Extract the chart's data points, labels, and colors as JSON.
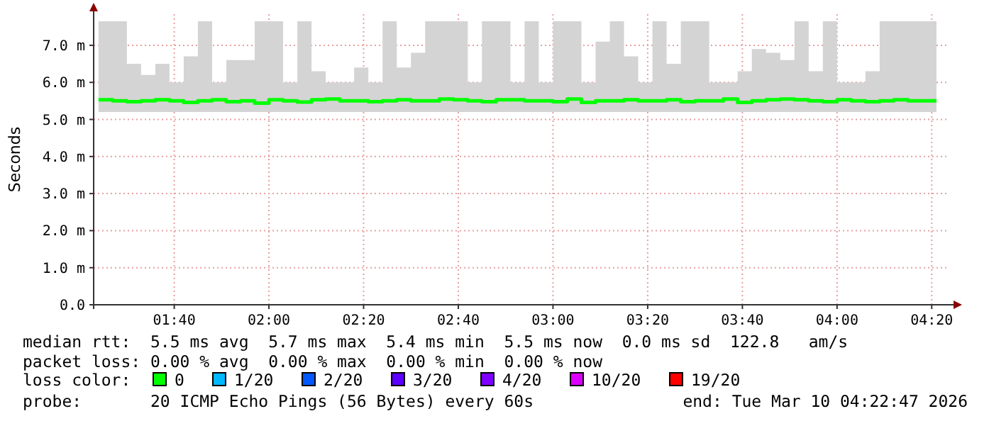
{
  "chart_data": {
    "type": "step",
    "ylabel": "Seconds",
    "x": [
      1.4,
      1.45,
      1.5,
      1.55,
      1.6,
      1.65,
      1.7,
      1.75,
      1.8,
      1.85,
      1.9,
      1.95,
      2.0,
      2.05,
      2.1,
      2.15,
      2.2,
      2.25,
      2.3,
      2.35,
      2.4,
      2.45,
      2.5,
      2.55,
      2.6,
      2.65,
      2.7,
      2.75,
      2.8,
      2.85,
      2.9,
      2.95,
      3.0,
      3.05,
      3.1,
      3.15,
      3.2,
      3.25,
      3.3,
      3.35,
      3.4,
      3.45,
      3.5,
      3.55,
      3.6,
      3.65,
      3.7,
      3.75,
      3.8,
      3.85,
      3.9,
      3.95,
      4.0,
      4.05,
      4.1,
      4.15,
      4.2,
      4.25,
      4.3,
      4.35
    ],
    "xlim": [
      1.383,
      4.39
    ],
    "xticks": [
      {
        "value": 1.6667,
        "label": "01:40"
      },
      {
        "value": 2.0,
        "label": "02:00"
      },
      {
        "value": 2.3333,
        "label": "02:20"
      },
      {
        "value": 2.6667,
        "label": "02:40"
      },
      {
        "value": 3.0,
        "label": "03:00"
      },
      {
        "value": 3.3333,
        "label": "03:20"
      },
      {
        "value": 3.6667,
        "label": "03:40"
      },
      {
        "value": 4.0,
        "label": "04:00"
      },
      {
        "value": 4.3333,
        "label": "04:20"
      }
    ],
    "ylim": [
      0,
      7.84
    ],
    "yticks": [
      {
        "value": 0,
        "label": "0.0"
      },
      {
        "value": 1,
        "label": "1.0 m"
      },
      {
        "value": 2,
        "label": "2.0 m"
      },
      {
        "value": 3,
        "label": "3.0 m"
      },
      {
        "value": 4,
        "label": "4.0 m"
      },
      {
        "value": 5,
        "label": "5.0 m"
      },
      {
        "value": 6,
        "label": "6.0 m"
      },
      {
        "value": 7,
        "label": "7.0 m"
      }
    ],
    "grid": true,
    "legend": "bottom",
    "legend_title": "loss color:",
    "series": [
      {
        "name": "0",
        "color": "#00ff00",
        "values": [
          5.53,
          5.5,
          5.48,
          5.5,
          5.53,
          5.5,
          5.46,
          5.5,
          5.53,
          5.48,
          5.5,
          5.44,
          5.53,
          5.5,
          5.47,
          5.53,
          5.55,
          5.5,
          5.5,
          5.48,
          5.5,
          5.53,
          5.5,
          5.5,
          5.55,
          5.53,
          5.5,
          5.48,
          5.53,
          5.53,
          5.5,
          5.5,
          5.48,
          5.55,
          5.46,
          5.5,
          5.5,
          5.53,
          5.5,
          5.5,
          5.53,
          5.48,
          5.5,
          5.5,
          5.55,
          5.46,
          5.5,
          5.53,
          5.55,
          5.53,
          5.5,
          5.48,
          5.53,
          5.5,
          5.48,
          5.5,
          5.53,
          5.5,
          5.5,
          5.5
        ],
        "lower": [
          5.2,
          5.2,
          5.2,
          5.2,
          5.2,
          5.2,
          5.2,
          5.2,
          5.2,
          5.2,
          5.2,
          5.2,
          5.2,
          5.2,
          5.2,
          5.2,
          5.2,
          5.2,
          5.2,
          5.2,
          5.2,
          5.2,
          5.2,
          5.2,
          5.2,
          5.2,
          5.2,
          5.2,
          5.2,
          5.2,
          5.2,
          5.2,
          5.2,
          5.2,
          5.2,
          5.2,
          5.2,
          5.2,
          5.2,
          5.2,
          5.2,
          5.2,
          5.2,
          5.2,
          5.2,
          5.2,
          5.2,
          5.2,
          5.2,
          5.2,
          5.2,
          5.2,
          5.2,
          5.2,
          5.2,
          5.2,
          5.2,
          5.2,
          5.2,
          5.2
        ],
        "upper": [
          7.65,
          7.65,
          6.5,
          6.2,
          6.5,
          6.0,
          6.7,
          7.65,
          6.0,
          6.6,
          6.6,
          7.65,
          7.65,
          6.0,
          7.65,
          6.3,
          6.0,
          6.0,
          6.4,
          6.0,
          7.65,
          6.4,
          6.8,
          7.65,
          7.65,
          7.65,
          6.0,
          7.65,
          7.65,
          6.0,
          7.65,
          6.0,
          7.65,
          7.65,
          6.0,
          7.1,
          7.65,
          6.7,
          6.0,
          7.65,
          6.5,
          7.65,
          7.65,
          6.0,
          6.0,
          6.3,
          6.9,
          6.8,
          6.6,
          7.65,
          6.3,
          7.65,
          6.0,
          6.0,
          6.3,
          7.65,
          7.65,
          7.65,
          7.65,
          6.0
        ]
      },
      {
        "name": "1/20",
        "color": "#00b8ff",
        "values": [
          null,
          null,
          null,
          null,
          null,
          null,
          null,
          null,
          null,
          null,
          null,
          null,
          null,
          null,
          null,
          null,
          null,
          null,
          null,
          null,
          null,
          null,
          null,
          null,
          null,
          null,
          null,
          null,
          null,
          null,
          null,
          null,
          null,
          null,
          null,
          null,
          null,
          null,
          null,
          null,
          null,
          null,
          null,
          null,
          null,
          null,
          null,
          null,
          null,
          null,
          null,
          null,
          null,
          null,
          null,
          null,
          null,
          null,
          null,
          null
        ]
      },
      {
        "name": "2/20",
        "color": "#0059ff",
        "values": [
          null,
          null,
          null,
          null,
          null,
          null,
          null,
          null,
          null,
          null,
          null,
          null,
          null,
          null,
          null,
          null,
          null,
          null,
          null,
          null,
          null,
          null,
          null,
          null,
          null,
          null,
          null,
          null,
          null,
          null,
          null,
          null,
          null,
          null,
          null,
          null,
          null,
          null,
          null,
          null,
          null,
          null,
          null,
          null,
          null,
          null,
          null,
          null,
          null,
          null,
          null,
          null,
          null,
          null,
          null,
          null,
          null,
          null,
          null,
          null
        ]
      },
      {
        "name": "3/20",
        "color": "#5e00ff",
        "values": [
          null,
          null,
          null,
          null,
          null,
          null,
          null,
          null,
          null,
          null,
          null,
          null,
          null,
          null,
          null,
          null,
          null,
          null,
          null,
          null,
          null,
          null,
          null,
          null,
          null,
          null,
          null,
          null,
          null,
          null,
          null,
          null,
          null,
          null,
          null,
          null,
          null,
          null,
          null,
          null,
          null,
          null,
          null,
          null,
          null,
          null,
          null,
          null,
          null,
          null,
          null,
          null,
          null,
          null,
          null,
          null,
          null,
          null,
          null,
          null
        ]
      },
      {
        "name": "4/20",
        "color": "#7e00ff",
        "values": [
          null,
          null,
          null,
          null,
          null,
          null,
          null,
          null,
          null,
          null,
          null,
          null,
          null,
          null,
          null,
          null,
          null,
          null,
          null,
          null,
          null,
          null,
          null,
          null,
          null,
          null,
          null,
          null,
          null,
          null,
          null,
          null,
          null,
          null,
          null,
          null,
          null,
          null,
          null,
          null,
          null,
          null,
          null,
          null,
          null,
          null,
          null,
          null,
          null,
          null,
          null,
          null,
          null,
          null,
          null,
          null,
          null,
          null,
          null,
          null
        ]
      },
      {
        "name": "10/20",
        "color": "#dd00ff",
        "values": [
          null,
          null,
          null,
          null,
          null,
          null,
          null,
          null,
          null,
          null,
          null,
          null,
          null,
          null,
          null,
          null,
          null,
          null,
          null,
          null,
          null,
          null,
          null,
          null,
          null,
          null,
          null,
          null,
          null,
          null,
          null,
          null,
          null,
          null,
          null,
          null,
          null,
          null,
          null,
          null,
          null,
          null,
          null,
          null,
          null,
          null,
          null,
          null,
          null,
          null,
          null,
          null,
          null,
          null,
          null,
          null,
          null,
          null,
          null,
          null
        ]
      },
      {
        "name": "19/20",
        "color": "#ff0000",
        "values": [
          null,
          null,
          null,
          null,
          null,
          null,
          null,
          null,
          null,
          null,
          null,
          null,
          null,
          null,
          null,
          null,
          null,
          null,
          null,
          null,
          null,
          null,
          null,
          null,
          null,
          null,
          null,
          null,
          null,
          null,
          null,
          null,
          null,
          null,
          null,
          null,
          null,
          null,
          null,
          null,
          null,
          null,
          null,
          null,
          null,
          null,
          null,
          null,
          null,
          null,
          null,
          null,
          null,
          null,
          null,
          null,
          null,
          null,
          null,
          null
        ]
      }
    ],
    "annotations": [
      "median rtt:  5.5 ms avg  5.7 ms max  5.4 ms min  5.5 ms now  0.0 ms sd  122.8   am/s",
      "packet loss: 0.00 % avg  0.00 % max  0.00 % min  0.00 % now",
      "probe:       20 ICMP Echo Pings (56 Bytes) every 60s",
      "end: Tue Mar 10 04:22:47 2026"
    ]
  }
}
